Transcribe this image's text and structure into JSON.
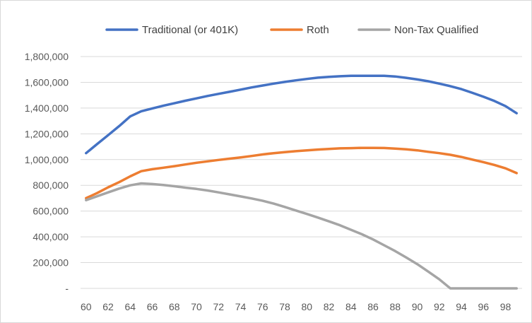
{
  "chart_data": {
    "type": "line",
    "title": "",
    "xlabel": "",
    "ylabel": "",
    "x": [
      60,
      61,
      62,
      63,
      64,
      65,
      66,
      67,
      68,
      69,
      70,
      71,
      72,
      73,
      74,
      75,
      76,
      77,
      78,
      79,
      80,
      81,
      82,
      83,
      84,
      85,
      86,
      87,
      88,
      89,
      90,
      91,
      92,
      93,
      94,
      95,
      96,
      97,
      98,
      99
    ],
    "xticks": [
      60,
      62,
      64,
      66,
      68,
      70,
      72,
      74,
      76,
      78,
      80,
      82,
      84,
      86,
      88,
      90,
      92,
      94,
      96,
      98
    ],
    "xlim": [
      59.5,
      99.5
    ],
    "ylim": [
      0,
      1800000
    ],
    "yticks": [
      0,
      200000,
      400000,
      600000,
      800000,
      1000000,
      1200000,
      1400000,
      1600000,
      1800000
    ],
    "ytick_labels": [
      "-",
      "200,000",
      "400,000",
      "600,000",
      "800,000",
      "1,000,000",
      "1,200,000",
      "1,400,000",
      "1,600,000",
      "1,800,000"
    ],
    "grid": "horizontal",
    "legend_position": "top",
    "series": [
      {
        "name": "Traditional (or 401K)",
        "color": "#4472c4",
        "values": [
          1050000,
          1120000,
          1190000,
          1260000,
          1335000,
          1375000,
          1397000,
          1418000,
          1437000,
          1457000,
          1475000,
          1494000,
          1510000,
          1526000,
          1543000,
          1560000,
          1575000,
          1590000,
          1603000,
          1615000,
          1626000,
          1636000,
          1642000,
          1647000,
          1650000,
          1651000,
          1651000,
          1650000,
          1645000,
          1635000,
          1622000,
          1608000,
          1590000,
          1570000,
          1547000,
          1518000,
          1488000,
          1455000,
          1415000,
          1360000
        ]
      },
      {
        "name": "Roth",
        "color": "#ed7d31",
        "values": [
          700000,
          740000,
          785000,
          825000,
          870000,
          910000,
          925000,
          937000,
          949000,
          962000,
          975000,
          986000,
          997000,
          1007000,
          1017000,
          1028000,
          1040000,
          1050000,
          1058000,
          1065000,
          1072000,
          1078000,
          1083000,
          1087000,
          1089000,
          1091000,
          1091000,
          1090000,
          1085000,
          1080000,
          1072000,
          1060000,
          1050000,
          1037000,
          1020000,
          1000000,
          980000,
          958000,
          932000,
          895000
        ]
      },
      {
        "name": "Non-Tax Qualified",
        "color": "#a5a5a5",
        "values": [
          685000,
          715000,
          745000,
          775000,
          800000,
          815000,
          810000,
          803000,
          793000,
          782000,
          772000,
          760000,
          745000,
          730000,
          714000,
          698000,
          680000,
          658000,
          632000,
          605000,
          578000,
          550000,
          520000,
          490000,
          455000,
          420000,
          380000,
          335000,
          290000,
          240000,
          188000,
          130000,
          70000,
          0,
          0,
          0,
          0,
          0,
          0,
          0
        ]
      }
    ]
  }
}
